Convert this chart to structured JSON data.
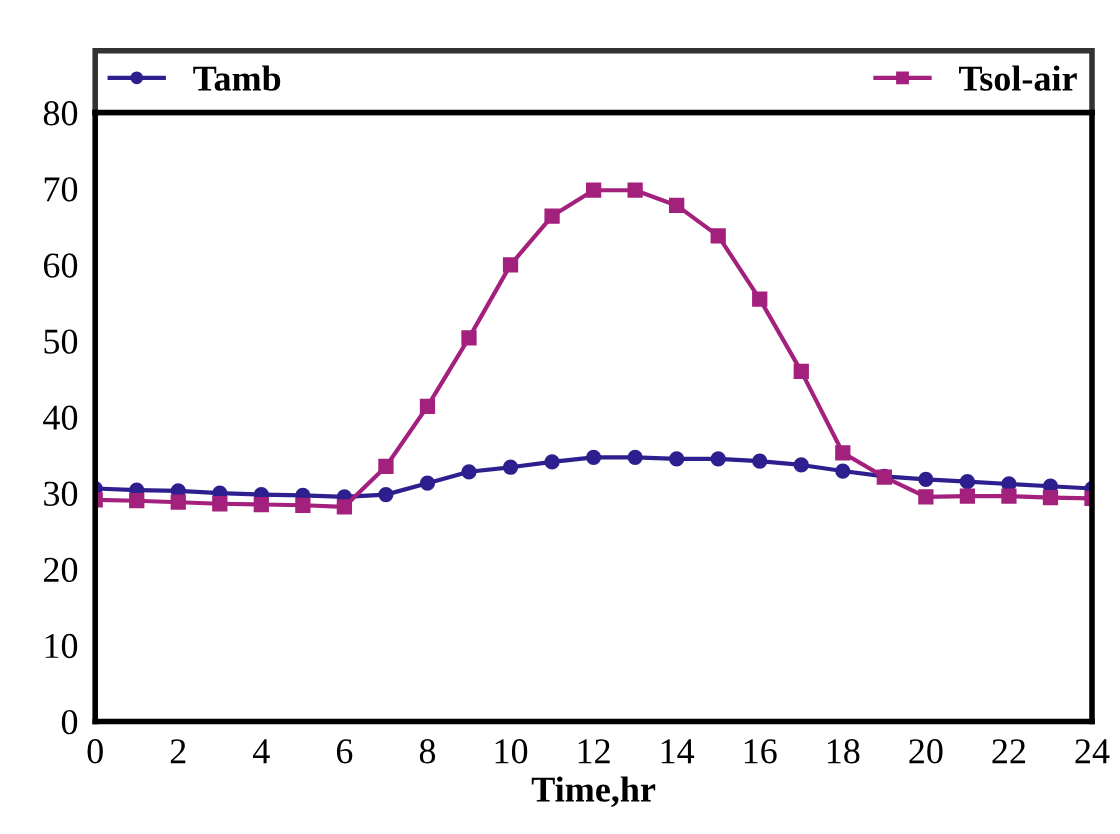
{
  "chart_data": {
    "type": "line",
    "xlabel": "Time,hr",
    "x": [
      0,
      1,
      2,
      3,
      4,
      5,
      6,
      7,
      8,
      9,
      10,
      11,
      12,
      13,
      14,
      15,
      16,
      17,
      18,
      19,
      20,
      21,
      22,
      23,
      24
    ],
    "series": [
      {
        "name": "Tamb",
        "color": "#2e1f8f",
        "marker": "circle",
        "values": [
          30.6,
          30.4,
          30.3,
          30.0,
          29.8,
          29.7,
          29.5,
          29.8,
          31.3,
          32.8,
          33.4,
          34.1,
          34.7,
          34.7,
          34.5,
          34.5,
          34.2,
          33.7,
          32.9,
          32.2,
          31.8,
          31.5,
          31.2,
          30.9,
          30.6
        ]
      },
      {
        "name": "Tsol-air",
        "color": "#a3217d",
        "marker": "square",
        "values": [
          29.1,
          29.0,
          28.8,
          28.6,
          28.5,
          28.4,
          28.2,
          33.5,
          41.4,
          50.4,
          60.0,
          66.4,
          69.8,
          69.8,
          67.8,
          63.8,
          55.5,
          46.0,
          35.3,
          32.1,
          29.5,
          29.6,
          29.6,
          29.4,
          29.3
        ]
      }
    ],
    "xlim": [
      0,
      24
    ],
    "xticks": [
      0,
      2,
      4,
      6,
      8,
      10,
      12,
      14,
      16,
      18,
      20,
      22,
      24
    ],
    "ylim": [
      0,
      80
    ],
    "yticks": [
      0,
      10,
      20,
      30,
      40,
      50,
      60,
      70,
      80
    ],
    "grid": false,
    "legend": "top",
    "line_style": "solid"
  }
}
